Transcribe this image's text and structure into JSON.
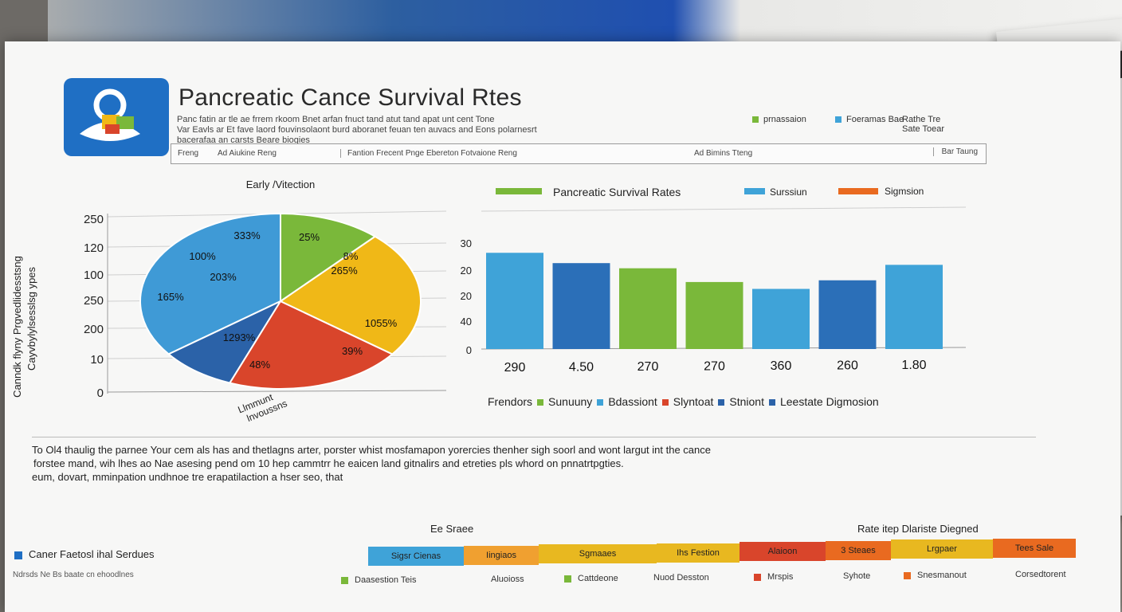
{
  "header": {
    "title": "Pancreatic Cance Survival Rtes",
    "subtitle_line1": "Panc fatin ar tle ae frrem rkoom Bnet arfan fnuct tand atut tand apat unt cent Tone",
    "subtitle_line2": "Var Eavls ar Et fave laord fouvinsolaont burd aboranet feuan ten auvacs and Eons polarnesrt",
    "subtitle_line3": "bacerafaa an carsts Beare biogies",
    "legend": [
      {
        "label": "prnassaion",
        "color": "#7ab83a"
      },
      {
        "label": "Foeramas Bae",
        "color": "#3fa3d8"
      },
      {
        "label": "Rathe Tre\nSate Toear",
        "color": ""
      }
    ]
  },
  "search_strip": {
    "items": [
      "Freng",
      "Ad Aiukine Reng",
      "Fantion Frecent Pnge Ebereton Fotvaione Reng",
      "Ad Bimins Tteng"
    ],
    "button": "Bar Taung"
  },
  "pie_title": "Early /Vitection",
  "pie_xlabel": "Llmmunt\nlnvoussns",
  "pie_ylabel_1": "Canndk flyny Prgvedlidesstsng",
  "pie_ylabel_2": "Cayvbylylsesslsg ypes",
  "pie_yticks": [
    "250",
    "120",
    "100",
    "250",
    "200",
    "10",
    "0"
  ],
  "bar_legend_title": "Pancreatic Survival Rates",
  "bar_legend_items": [
    {
      "label": "Surssiun",
      "color": "#3fa3d8"
    },
    {
      "label": "Sigmsion",
      "color": "#e96a20"
    }
  ],
  "bar_yticks": [
    "30",
    "20",
    "20",
    "40",
    "0"
  ],
  "bottom_legend": [
    {
      "label": "Frendors",
      "color": ""
    },
    {
      "label": "Sunuuny",
      "color": "#7ab83a"
    },
    {
      "label": "Bdassiont",
      "color": "#3fa3d8"
    },
    {
      "label": "Slyntoat",
      "color": "#d9452b"
    },
    {
      "label": "Stniont",
      "color": "#2b62a8"
    },
    {
      "label": "Leestate Digmosion",
      "color": "#2b62a8"
    }
  ],
  "text_block": {
    "line1": "To Ol4 thaulig the parnee Your cem als has and thetlagns arter, porster whist mosfamapon yorercies thenher sigh soorl and wont largut int the cance",
    "line2": "forstee mand, wih lhes ao Nae asesing pend om 10 hep cammtrr he eaicen land gitnalirs and etreties pls whord on pnnatrtpgties.",
    "line3": "eum, dovart, mminpation undhnoe tre erapatilaction a hser seo, that"
  },
  "bottom_left": {
    "title": "Caner Faetosl ihal Serdues",
    "sub": "Ndrsds Ne Bs baate cn ehoodlnes"
  },
  "bottom_strip": {
    "title_left": "Ee Sraee",
    "title_right": "Rate itep Dlariste Diegned",
    "cells": [
      {
        "label": "Sigsr Cienas",
        "color": "#3fa3d8"
      },
      {
        "label": "Iingiaos",
        "color": "#f0a030"
      },
      {
        "label": "Sgmaaes",
        "color": "#e8b820"
      },
      {
        "label": "Ihs Festion",
        "color": "#e8b820"
      },
      {
        "label": "Alaioon",
        "color": "#d9452b"
      },
      {
        "label": "3 Steaes",
        "color": "#e96a20"
      },
      {
        "label": "Lrgpaer",
        "color": "#e8b820"
      },
      {
        "label": "Tees Sale",
        "color": "#e96a20"
      }
    ],
    "legend": [
      {
        "label": "Daasestion Teis",
        "color": "#7ab83a"
      },
      {
        "label": "Aluoioss",
        "color": ""
      },
      {
        "label": "Cattdeone",
        "color": "#7ab83a"
      },
      {
        "label": "Nuod Desston",
        "color": ""
      },
      {
        "label": "Mrspis",
        "color": "#d9452b"
      },
      {
        "label": "Syhote",
        "color": ""
      },
      {
        "label": "Snesmanout",
        "color": "#e96a20"
      },
      {
        "label": "Corsedtorent",
        "color": ""
      }
    ]
  },
  "chart_data": [
    {
      "type": "pie",
      "title": "Early /Vitection",
      "slices": [
        {
          "label": "25%",
          "value": 33.3,
          "color": "#3f9ad6",
          "labels": [
            "25%",
            "8%",
            "265%",
            "1055%",
            "39%"
          ]
        },
        {
          "label": "333%",
          "value": 8.3,
          "color": "#2b62a8",
          "labels": [
            "333%"
          ]
        },
        {
          "label": "165%",
          "value": 19.4,
          "color": "#d9452b",
          "labels": [
            "100%",
            "203%",
            "165%"
          ]
        },
        {
          "label": "1293%",
          "value": 22.2,
          "color": "#f0b817",
          "labels": [
            "1293%",
            "48%"
          ]
        },
        {
          "label": "48%",
          "value": 11.1,
          "color": "#7ab83a",
          "labels": []
        }
      ]
    },
    {
      "type": "bar",
      "title": "Pancreatic Survival Rates",
      "categories": [
        "290",
        "4.50",
        "270",
        "270",
        "360",
        "260",
        "1.80"
      ],
      "values": [
        28,
        25,
        23.5,
        19.5,
        17.5,
        20,
        24.5
      ],
      "colors": [
        "#3fa3d8",
        "#2b6fb8",
        "#7ab83a",
        "#7ab83a",
        "#3fa3d8",
        "#2b6fb8",
        "#3fa3d8"
      ],
      "ylim": [
        0,
        32
      ]
    }
  ]
}
